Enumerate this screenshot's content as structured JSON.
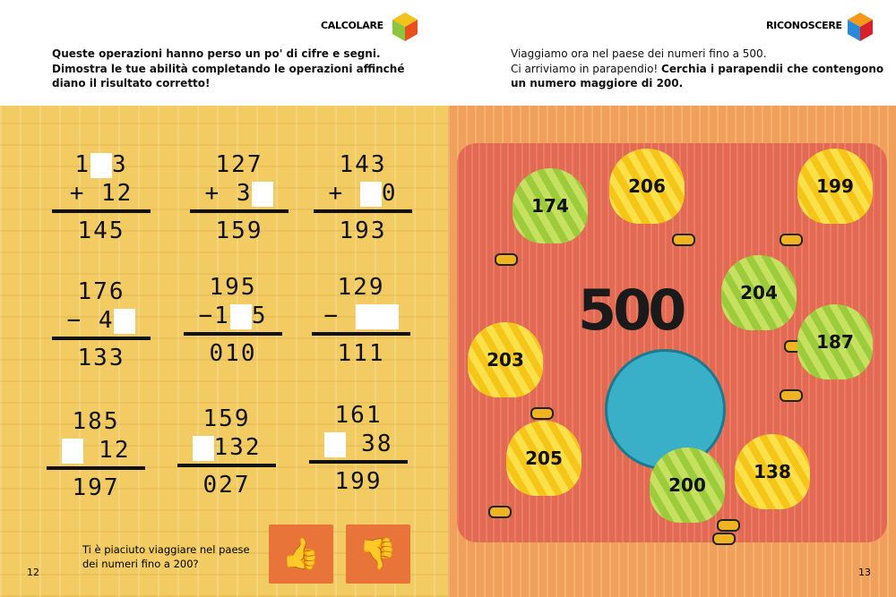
{
  "left": {
    "section_label": "CALCOLARE",
    "intro": [
      "Queste operazioni hanno perso un po' di cifre e segni.",
      "Dimostra le tue abilità completando le operazioni affinché",
      "diano il risultato corretto!"
    ],
    "operations": [
      {
        "top": "1□3",
        "second": "+ 12",
        "result": "145"
      },
      {
        "top": "127",
        "second": "+ 3□",
        "result": "159"
      },
      {
        "top": "143",
        "second": "+ □0",
        "result": "193"
      },
      {
        "top": "176",
        "second": "− 4□",
        "result": "133"
      },
      {
        "top": "195",
        "second": "−1□5",
        "result": "010"
      },
      {
        "top": "129",
        "second": "− □□",
        "result": "111"
      },
      {
        "top": "185",
        "second": "□ 12",
        "result": "197"
      },
      {
        "top": "159",
        "second": "□132",
        "result": "027"
      },
      {
        "top": "161",
        "second": "□ 38",
        "result": "199"
      }
    ],
    "question": [
      "Ti è piaciuto viaggiare nel paese",
      "dei numeri fino a 200?"
    ],
    "page_number": "12",
    "icons": {
      "like": "thumbs-up-icon",
      "dislike": "thumbs-down-icon"
    }
  },
  "right": {
    "section_label": "RICONOSCERE",
    "intro_plain": [
      "Viaggiamo ora nel paese dei numeri fino a 500.",
      "Ci arriviamo in parapendio! "
    ],
    "intro_bold": [
      "Cerchia i parapendii che contengono",
      "un numero maggiore di 200."
    ],
    "title_number": "500",
    "paragliders": [
      {
        "number": "174",
        "color": "green"
      },
      {
        "number": "206",
        "color": "yellow"
      },
      {
        "number": "199",
        "color": "yellow"
      },
      {
        "number": "204",
        "color": "green"
      },
      {
        "number": "187",
        "color": "green"
      },
      {
        "number": "203",
        "color": "yellow"
      },
      {
        "number": "205",
        "color": "yellow"
      },
      {
        "number": "200",
        "color": "green"
      },
      {
        "number": "138",
        "color": "yellow"
      }
    ],
    "page_number": "13"
  }
}
